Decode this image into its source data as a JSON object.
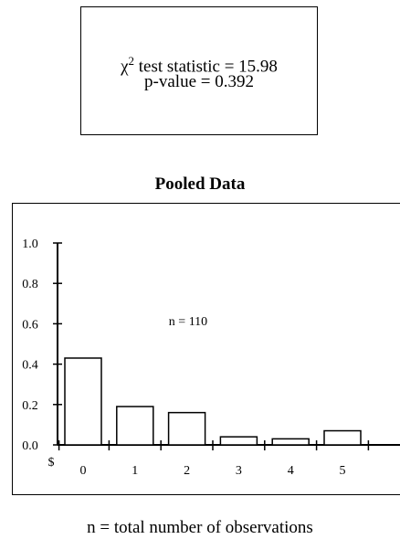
{
  "stats": {
    "chi_prefix": "χ",
    "chi_sup": "2",
    "chi_suffix": " test statistic = 15.98",
    "pvalue": "p-value = 0.392"
  },
  "footnote": "n = total number of observations",
  "chart_data": {
    "type": "bar",
    "title": "Pooled Data",
    "annotation": "n = 110",
    "currency_label": "$",
    "categories": [
      "0",
      "1",
      "2",
      "3",
      "4",
      "5"
    ],
    "values": [
      0.43,
      0.19,
      0.16,
      0.04,
      0.03,
      0.07
    ],
    "ylim": [
      0,
      1.0
    ],
    "yticks": [
      "0.0",
      "0.2",
      "0.4",
      "0.6",
      "0.8",
      "1.0"
    ],
    "xlabel": "",
    "ylabel": "",
    "grid": false
  }
}
